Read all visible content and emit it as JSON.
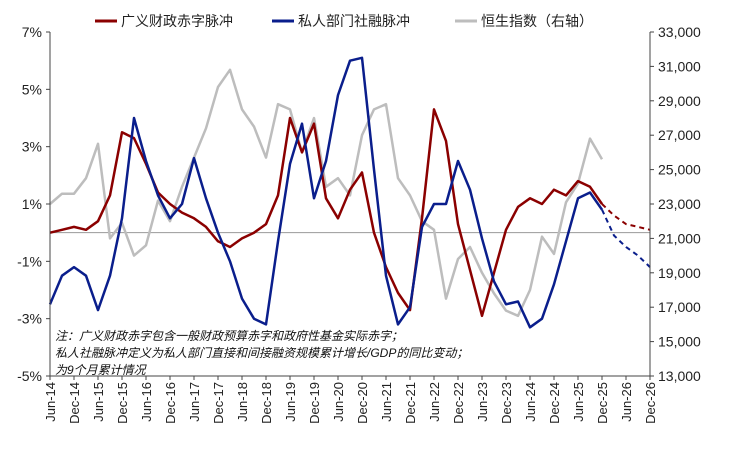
{
  "chart_data": {
    "type": "line",
    "title": "",
    "legend": {
      "placement": "top",
      "items": [
        "广义财政赤字脉冲",
        "私人部门社融脉冲",
        "恒生指数（右轴）"
      ]
    },
    "left_axis": {
      "range": [
        -5,
        7
      ],
      "ticks": [
        -5,
        -3,
        -1,
        1,
        3,
        5,
        7
      ],
      "tick_labels": [
        "-5%",
        "-3%",
        "-1%",
        "1%",
        "3%",
        "5%",
        "7%"
      ],
      "reference_line": 0
    },
    "right_axis": {
      "range": [
        13000,
        33000
      ],
      "ticks": [
        13000,
        15000,
        17000,
        19000,
        21000,
        23000,
        25000,
        27000,
        29000,
        31000,
        33000
      ],
      "tick_labels": [
        "13,000",
        "15,000",
        "17,000",
        "19,000",
        "21,000",
        "23,000",
        "25,000",
        "27,000",
        "29,000",
        "31,000",
        "33,000"
      ]
    },
    "x_axis": {
      "ticks": [
        "Jun-14",
        "Dec-14",
        "Jun-15",
        "Dec-15",
        "Jun-16",
        "Dec-16",
        "Jun-17",
        "Dec-17",
        "Jun-18",
        "Dec-18",
        "Jun-19",
        "Dec-19",
        "Jun-20",
        "Dec-20",
        "Jun-21",
        "Dec-21",
        "Jun-22",
        "Dec-22",
        "Jun-23",
        "Dec-23",
        "Jun-24",
        "Dec-24",
        "Jun-25",
        "Dec-25",
        "Jun-26",
        "Dec-26"
      ],
      "start": "2014-06",
      "end": "2026-12"
    },
    "series": [
      {
        "name": "广义财政赤字脉冲",
        "axis": "left",
        "color": "#8b0000",
        "points": [
          [
            "2014-06",
            0.0
          ],
          [
            "2014-09",
            0.1
          ],
          [
            "2014-12",
            0.2
          ],
          [
            "2015-03",
            0.1
          ],
          [
            "2015-06",
            0.4
          ],
          [
            "2015-09",
            1.3
          ],
          [
            "2015-12",
            3.5
          ],
          [
            "2016-03",
            3.3
          ],
          [
            "2016-06",
            2.4
          ],
          [
            "2016-09",
            1.4
          ],
          [
            "2016-12",
            1.0
          ],
          [
            "2017-03",
            0.7
          ],
          [
            "2017-06",
            0.5
          ],
          [
            "2017-09",
            0.2
          ],
          [
            "2017-12",
            -0.3
          ],
          [
            "2018-03",
            -0.5
          ],
          [
            "2018-06",
            -0.2
          ],
          [
            "2018-09",
            0.0
          ],
          [
            "2018-12",
            0.3
          ],
          [
            "2019-03",
            1.3
          ],
          [
            "2019-06",
            4.0
          ],
          [
            "2019-09",
            2.8
          ],
          [
            "2019-12",
            3.8
          ],
          [
            "2020-03",
            1.2
          ],
          [
            "2020-06",
            0.5
          ],
          [
            "2020-09",
            1.5
          ],
          [
            "2020-12",
            2.1
          ],
          [
            "2021-03",
            0.0
          ],
          [
            "2021-06",
            -1.2
          ],
          [
            "2021-09",
            -2.1
          ],
          [
            "2021-12",
            -2.7
          ],
          [
            "2022-03",
            0.5
          ],
          [
            "2022-06",
            4.3
          ],
          [
            "2022-09",
            3.2
          ],
          [
            "2022-12",
            0.3
          ],
          [
            "2023-03",
            -1.3
          ],
          [
            "2023-06",
            -2.9
          ],
          [
            "2023-09",
            -1.4
          ],
          [
            "2023-12",
            0.1
          ],
          [
            "2024-03",
            0.9
          ],
          [
            "2024-06",
            1.2
          ],
          [
            "2024-09",
            1.0
          ],
          [
            "2024-12",
            1.5
          ],
          [
            "2025-03",
            1.3
          ],
          [
            "2025-06",
            1.8
          ],
          [
            "2025-09",
            1.6
          ],
          [
            "2025-12",
            1.0
          ]
        ],
        "forecast": [
          [
            "2025-12",
            1.0
          ],
          [
            "2026-03",
            0.6
          ],
          [
            "2026-06",
            0.3
          ],
          [
            "2026-09",
            0.2
          ],
          [
            "2026-12",
            0.1
          ]
        ]
      },
      {
        "name": "私人部门社融脉冲",
        "axis": "left",
        "color": "#0a1e8c",
        "points": [
          [
            "2014-06",
            -2.5
          ],
          [
            "2014-09",
            -1.5
          ],
          [
            "2014-12",
            -1.2
          ],
          [
            "2015-03",
            -1.5
          ],
          [
            "2015-06",
            -2.7
          ],
          [
            "2015-09",
            -1.5
          ],
          [
            "2015-12",
            0.5
          ],
          [
            "2016-03",
            4.0
          ],
          [
            "2016-06",
            2.5
          ],
          [
            "2016-09",
            1.3
          ],
          [
            "2016-12",
            0.5
          ],
          [
            "2017-03",
            1.0
          ],
          [
            "2017-06",
            2.6
          ],
          [
            "2017-09",
            1.2
          ],
          [
            "2017-12",
            0.0
          ],
          [
            "2018-03",
            -1.0
          ],
          [
            "2018-06",
            -2.3
          ],
          [
            "2018-09",
            -3.0
          ],
          [
            "2018-12",
            -3.2
          ],
          [
            "2019-03",
            -0.3
          ],
          [
            "2019-06",
            2.4
          ],
          [
            "2019-09",
            3.8
          ],
          [
            "2019-12",
            1.2
          ],
          [
            "2020-03",
            2.5
          ],
          [
            "2020-06",
            4.8
          ],
          [
            "2020-09",
            6.0
          ],
          [
            "2020-12",
            6.1
          ],
          [
            "2021-03",
            2.2
          ],
          [
            "2021-06",
            -1.5
          ],
          [
            "2021-09",
            -3.2
          ],
          [
            "2021-12",
            -2.6
          ],
          [
            "2022-03",
            0.2
          ],
          [
            "2022-06",
            1.0
          ],
          [
            "2022-09",
            1.0
          ],
          [
            "2022-12",
            2.5
          ],
          [
            "2023-03",
            1.5
          ],
          [
            "2023-06",
            -0.2
          ],
          [
            "2023-09",
            -1.7
          ],
          [
            "2023-12",
            -2.5
          ],
          [
            "2024-03",
            -2.4
          ],
          [
            "2024-06",
            -3.3
          ],
          [
            "2024-09",
            -3.0
          ],
          [
            "2024-12",
            -1.8
          ],
          [
            "2025-03",
            -0.3
          ],
          [
            "2025-06",
            1.2
          ],
          [
            "2025-09",
            1.4
          ],
          [
            "2025-12",
            0.8
          ]
        ],
        "forecast": [
          [
            "2025-12",
            0.8
          ],
          [
            "2026-03",
            -0.1
          ],
          [
            "2026-06",
            -0.5
          ],
          [
            "2026-09",
            -0.8
          ],
          [
            "2026-12",
            -1.2
          ]
        ]
      },
      {
        "name": "恒生指数（右轴）",
        "axis": "right",
        "color": "#bdbdbd",
        "points": [
          [
            "2014-06",
            23000
          ],
          [
            "2014-09",
            23600
          ],
          [
            "2014-12",
            23600
          ],
          [
            "2015-03",
            24500
          ],
          [
            "2015-06",
            26500
          ],
          [
            "2015-09",
            21000
          ],
          [
            "2015-12",
            21900
          ],
          [
            "2016-03",
            20000
          ],
          [
            "2016-06",
            20600
          ],
          [
            "2016-09",
            23200
          ],
          [
            "2016-12",
            22000
          ],
          [
            "2017-03",
            24000
          ],
          [
            "2017-06",
            25700
          ],
          [
            "2017-09",
            27400
          ],
          [
            "2017-12",
            29800
          ],
          [
            "2018-03",
            30800
          ],
          [
            "2018-06",
            28500
          ],
          [
            "2018-09",
            27500
          ],
          [
            "2018-12",
            25700
          ],
          [
            "2019-03",
            28800
          ],
          [
            "2019-06",
            28500
          ],
          [
            "2019-09",
            26000
          ],
          [
            "2019-12",
            28000
          ],
          [
            "2020-03",
            24000
          ],
          [
            "2020-06",
            24500
          ],
          [
            "2020-09",
            23500
          ],
          [
            "2020-12",
            27000
          ],
          [
            "2021-03",
            28500
          ],
          [
            "2021-06",
            28800
          ],
          [
            "2021-09",
            24500
          ],
          [
            "2021-12",
            23500
          ],
          [
            "2022-03",
            22000
          ],
          [
            "2022-06",
            21500
          ],
          [
            "2022-09",
            17500
          ],
          [
            "2022-12",
            19800
          ],
          [
            "2023-03",
            20500
          ],
          [
            "2023-06",
            19000
          ],
          [
            "2023-09",
            17800
          ],
          [
            "2023-12",
            16800
          ],
          [
            "2024-03",
            16500
          ],
          [
            "2024-06",
            18000
          ],
          [
            "2024-09",
            21100
          ],
          [
            "2024-12",
            20100
          ],
          [
            "2025-03",
            23100
          ],
          [
            "2025-06",
            24200
          ],
          [
            "2025-09",
            26800
          ],
          [
            "2025-12",
            25600
          ]
        ]
      }
    ],
    "footnotes": [
      "注：广义财政赤字包含一般财政预算赤字和政府性基金实际赤字；",
      "私人社融脉冲定义为私人部门直接和间接融资规模累计增长/GDP的同比变动；",
      "为9个月累计情况"
    ]
  }
}
